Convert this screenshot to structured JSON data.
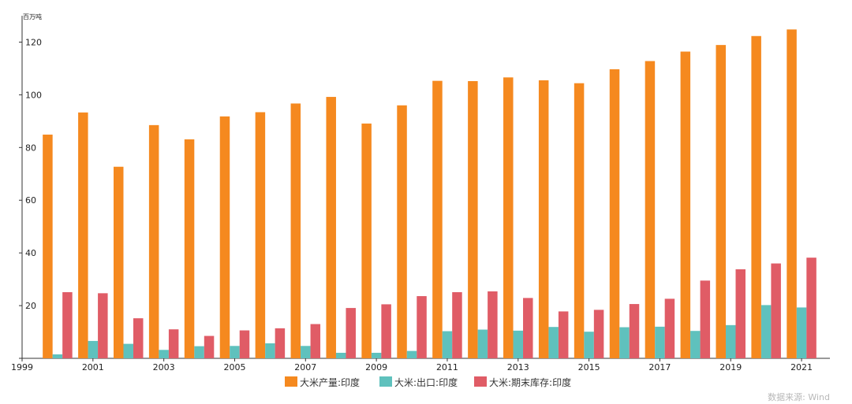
{
  "chart_data": {
    "type": "bar",
    "ylabel": "百万吨",
    "ylim": [
      0,
      130
    ],
    "y_ticks": [
      0,
      20,
      40,
      60,
      80,
      100,
      120
    ],
    "x_tick_labels": [
      "1999",
      "2001",
      "2003",
      "2005",
      "2007",
      "2009",
      "2011",
      "2013",
      "2015",
      "2017",
      "2019",
      "2021"
    ],
    "categories": [
      "2000",
      "2001",
      "2002",
      "2003",
      "2004",
      "2005",
      "2006",
      "2007",
      "2008",
      "2009",
      "2010",
      "2011",
      "2012",
      "2013",
      "2014",
      "2015",
      "2016",
      "2017",
      "2018",
      "2019",
      "2020",
      "2021"
    ],
    "series": [
      {
        "name": "大米产量:印度",
        "color": "#f5891f",
        "values": [
          84.9,
          93.3,
          72.7,
          88.5,
          83.1,
          91.8,
          93.4,
          96.7,
          99.2,
          89.1,
          96.0,
          105.3,
          105.2,
          106.6,
          105.5,
          104.4,
          109.7,
          112.8,
          116.4,
          118.9,
          122.3,
          124.8
        ]
      },
      {
        "name": "大米:出口:印度",
        "color": "#5fc1bd",
        "values": [
          1.5,
          6.6,
          5.5,
          3.2,
          4.6,
          4.7,
          5.7,
          4.7,
          2.1,
          2.1,
          2.8,
          10.3,
          10.9,
          10.5,
          11.9,
          10.1,
          11.8,
          12.0,
          10.4,
          12.6,
          20.2,
          19.3
        ]
      },
      {
        "name": "大米:期末库存:印度",
        "color": "#e05c66",
        "values": [
          25.1,
          24.7,
          15.2,
          11.0,
          8.5,
          10.6,
          11.4,
          13.0,
          19.1,
          20.5,
          23.6,
          25.1,
          25.4,
          22.9,
          17.8,
          18.4,
          20.6,
          22.6,
          29.5,
          33.8,
          36.0,
          38.2
        ]
      }
    ],
    "source": "数据来源: Wind"
  }
}
